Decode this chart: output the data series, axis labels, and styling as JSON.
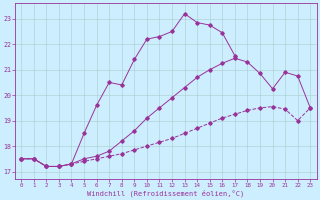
{
  "xlabel": "Windchill (Refroidissement éolien,°C)",
  "bg_color": "#cceeff",
  "line_color": "#993399",
  "grid_color": "#aacccc",
  "xlim": [
    -0.5,
    23.5
  ],
  "ylim": [
    16.7,
    23.6
  ],
  "yticks": [
    17,
    18,
    19,
    20,
    21,
    22,
    23
  ],
  "xticks": [
    0,
    1,
    2,
    3,
    4,
    5,
    6,
    7,
    8,
    9,
    10,
    11,
    12,
    13,
    14,
    15,
    16,
    17,
    18,
    19,
    20,
    21,
    22,
    23
  ],
  "curve1_x": [
    0,
    1,
    2,
    3,
    4,
    5,
    6,
    7,
    8,
    9,
    10,
    11,
    12,
    13,
    14,
    15,
    16,
    17
  ],
  "curve1_y": [
    17.5,
    17.5,
    17.2,
    17.2,
    17.3,
    18.5,
    19.6,
    20.5,
    20.4,
    21.4,
    22.2,
    22.3,
    22.5,
    23.2,
    22.85,
    22.75,
    22.45,
    21.55
  ],
  "curve2_x": [
    0,
    1,
    2,
    3,
    4,
    5,
    6,
    7,
    8,
    9,
    10,
    11,
    12,
    13,
    14,
    15,
    16,
    17,
    18,
    19,
    20,
    21,
    22,
    23
  ],
  "curve2_y": [
    17.5,
    17.5,
    17.2,
    17.2,
    17.3,
    17.5,
    17.6,
    17.8,
    18.2,
    18.6,
    19.1,
    19.5,
    19.9,
    20.3,
    20.7,
    21.0,
    21.25,
    21.45,
    21.3,
    20.85,
    20.25,
    20.9,
    20.75,
    19.5
  ],
  "curve3_x": [
    0,
    1,
    2,
    3,
    4,
    5,
    6,
    7,
    8,
    9,
    10,
    11,
    12,
    13,
    14,
    15,
    16,
    17,
    18,
    19,
    20,
    21,
    22,
    23
  ],
  "curve3_y": [
    17.5,
    17.5,
    17.2,
    17.2,
    17.3,
    17.4,
    17.5,
    17.6,
    17.7,
    17.85,
    18.0,
    18.15,
    18.3,
    18.5,
    18.7,
    18.9,
    19.1,
    19.25,
    19.4,
    19.5,
    19.55,
    19.45,
    19.0,
    19.5
  ]
}
